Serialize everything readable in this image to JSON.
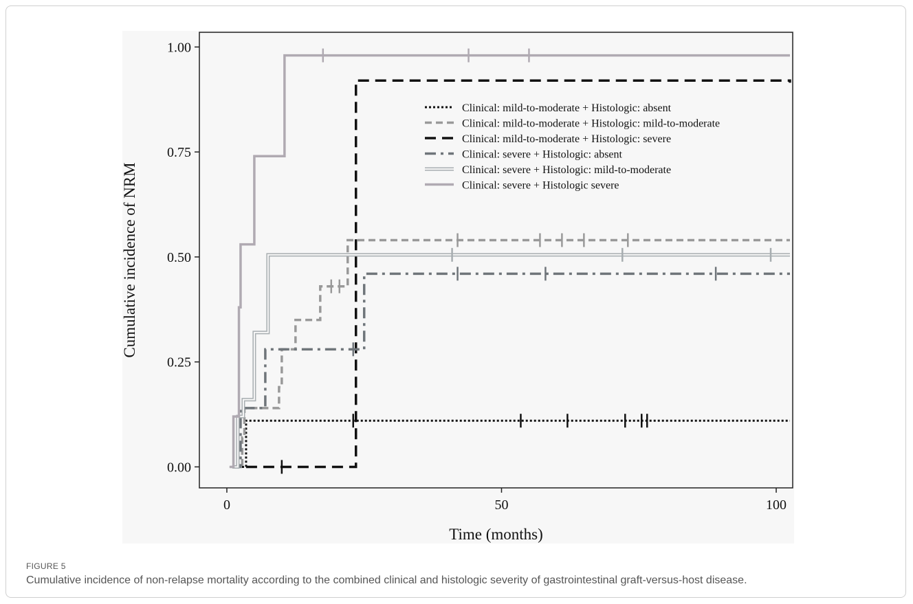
{
  "figure": {
    "label": "FIGURE 5",
    "caption": "Cumulative incidence of non-relapse mortality according to the combined clinical and histologic severity of gastrointestinal graft-versus-host disease."
  },
  "chart_data": {
    "type": "line",
    "subtype": "step",
    "xlabel": "Time (months)",
    "ylabel": "Cumulative incidence of NRM",
    "xlim": [
      -5,
      103
    ],
    "ylim": [
      -0.05,
      1.035
    ],
    "x_ticks": [
      0,
      50,
      100
    ],
    "x_tick_labels": [
      "0",
      "50",
      "100"
    ],
    "y_ticks": [
      0,
      0.25,
      0.5,
      0.75,
      1.0
    ],
    "y_tick_labels": [
      "0.00",
      "0.25",
      "0.50",
      "0.75",
      "1.00"
    ],
    "grid": false,
    "legend_position": "top-right",
    "series": [
      {
        "name": "Clinical: mild-to-moderate + Histologic: absent",
        "style": "dotted",
        "color": "#111111",
        "steps": [
          [
            0.5,
            0
          ],
          [
            3.5,
            0.11
          ],
          [
            102.5,
            0.11
          ]
        ],
        "censor_x": [
          23,
          53.5,
          62,
          72.5,
          75.5,
          76.5
        ]
      },
      {
        "name": "Clinical: mild-to-moderate + Histologic: mild-to-moderate",
        "style": "dashed",
        "color": "#999999",
        "steps": [
          [
            1,
            0
          ],
          [
            2.8,
            0.07
          ],
          [
            3.2,
            0.14
          ],
          [
            9.5,
            0.19
          ],
          [
            10,
            0.28
          ],
          [
            12.5,
            0.35
          ],
          [
            17,
            0.43
          ],
          [
            22,
            0.54
          ],
          [
            102.5,
            0.54
          ]
        ],
        "censor_x": [
          19,
          20.5,
          42,
          57,
          61,
          65,
          73
        ]
      },
      {
        "name": "Clinical: mild-to-moderate + Histologic: severe",
        "style": "long-dashed",
        "color": "#111111",
        "steps": [
          [
            3.5,
            0
          ],
          [
            23.5,
            0.92
          ],
          [
            102.5,
            0.915
          ]
        ],
        "censor_x": [
          10
        ]
      },
      {
        "name": "Clinical: severe + Histologic: absent",
        "style": "dash-dot",
        "color": "#6f757a",
        "steps": [
          [
            1,
            0
          ],
          [
            2.5,
            0.14
          ],
          [
            7,
            0.28
          ],
          [
            25,
            0.46
          ],
          [
            102.5,
            0.46
          ]
        ],
        "censor_x": [
          23,
          42,
          58,
          89
        ]
      },
      {
        "name": "Clinical: severe + Histologic: mild-to-moderate",
        "style": "double",
        "color": "#a7adb0",
        "steps": [
          [
            1,
            0
          ],
          [
            2,
            0.12
          ],
          [
            3,
            0.16
          ],
          [
            5,
            0.32
          ],
          [
            7.5,
            0.505
          ],
          [
            102.5,
            0.505
          ]
        ],
        "censor_x": [
          41,
          72,
          99
        ]
      },
      {
        "name": "Clinical: severe + Histologic severe",
        "style": "solid",
        "color": "#b0aab2",
        "steps": [
          [
            0.5,
            0
          ],
          [
            1.2,
            0.12
          ],
          [
            2.2,
            0.38
          ],
          [
            2.5,
            0.53
          ],
          [
            5,
            0.74
          ],
          [
            10.5,
            0.98
          ],
          [
            102.5,
            0.98
          ]
        ],
        "censor_x": [
          17.5,
          44,
          55
        ]
      }
    ]
  }
}
